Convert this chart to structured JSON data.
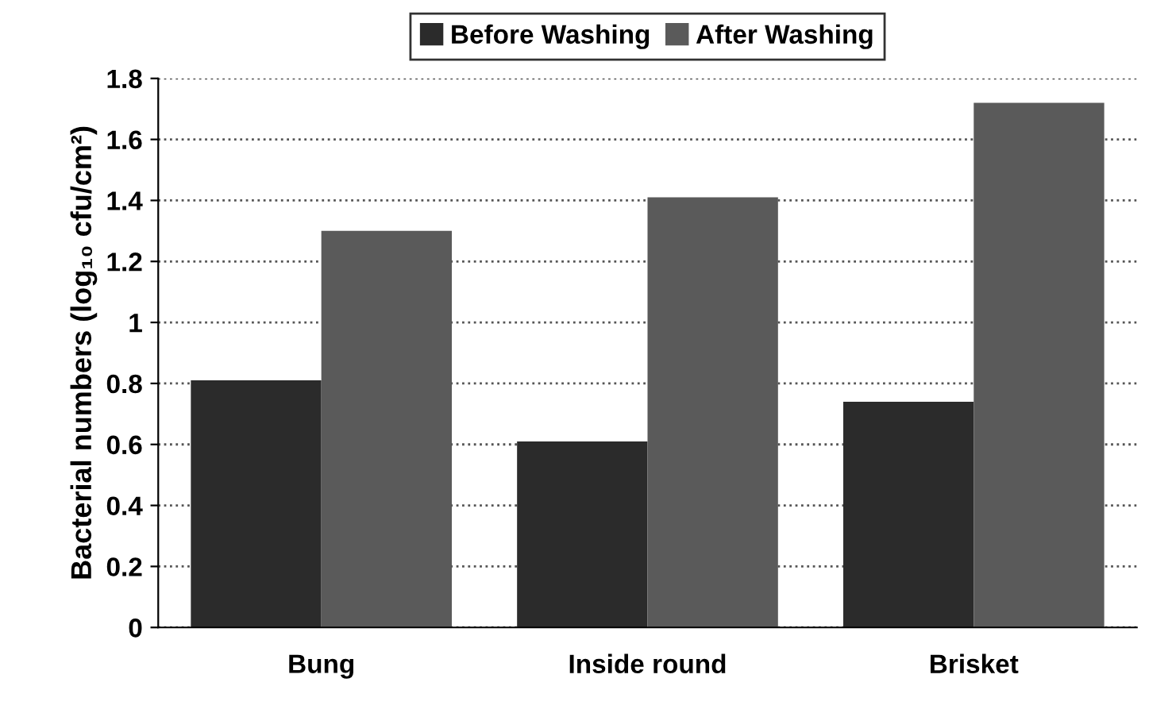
{
  "chart_data": {
    "type": "bar",
    "ylabel": "Bacterial numbers (log₁₀ cfu/cm²)",
    "categories": [
      "Bung",
      "Inside round",
      "Brisket"
    ],
    "series": [
      {
        "name": "Before Washing",
        "color": "#2b2b2b",
        "values": [
          0.81,
          0.61,
          0.74
        ]
      },
      {
        "name": "After Washing",
        "color": "#5a5a5a",
        "values": [
          1.3,
          1.41,
          1.72
        ]
      }
    ],
    "ylim": [
      0,
      1.8
    ],
    "yticks": [
      0,
      0.2,
      0.4,
      0.6,
      0.8,
      1,
      1.2,
      1.4,
      1.6,
      1.8
    ],
    "grid": "y",
    "legend": "top"
  }
}
